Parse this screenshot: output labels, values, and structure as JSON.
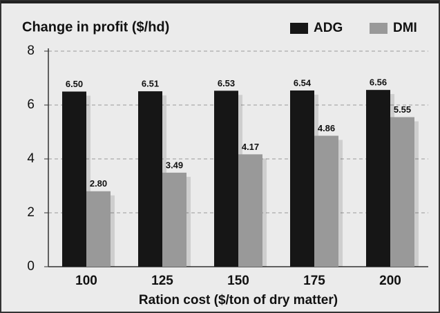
{
  "chart_data": {
    "type": "bar",
    "title": "Change in profit ($/hd)",
    "x_label": "Ration cost ($/ton of dry matter)",
    "categories": [
      "100",
      "125",
      "150",
      "175",
      "200"
    ],
    "series": [
      {
        "name": "ADG",
        "color": "#161616",
        "values": [
          6.5,
          6.51,
          6.53,
          6.54,
          6.56
        ],
        "value_labels": [
          "6.50",
          "6.51",
          "6.53",
          "6.54",
          "6.56"
        ]
      },
      {
        "name": "DMI",
        "color": "#999999",
        "values": [
          2.8,
          3.49,
          4.17,
          4.86,
          5.55
        ],
        "value_labels": [
          "2.80",
          "3.49",
          "4.17",
          "4.86",
          "5.55"
        ]
      }
    ],
    "ylim": [
      0,
      8
    ],
    "yticks": [
      0,
      2,
      4,
      6,
      8
    ],
    "grid": true,
    "legend": "top-right"
  }
}
